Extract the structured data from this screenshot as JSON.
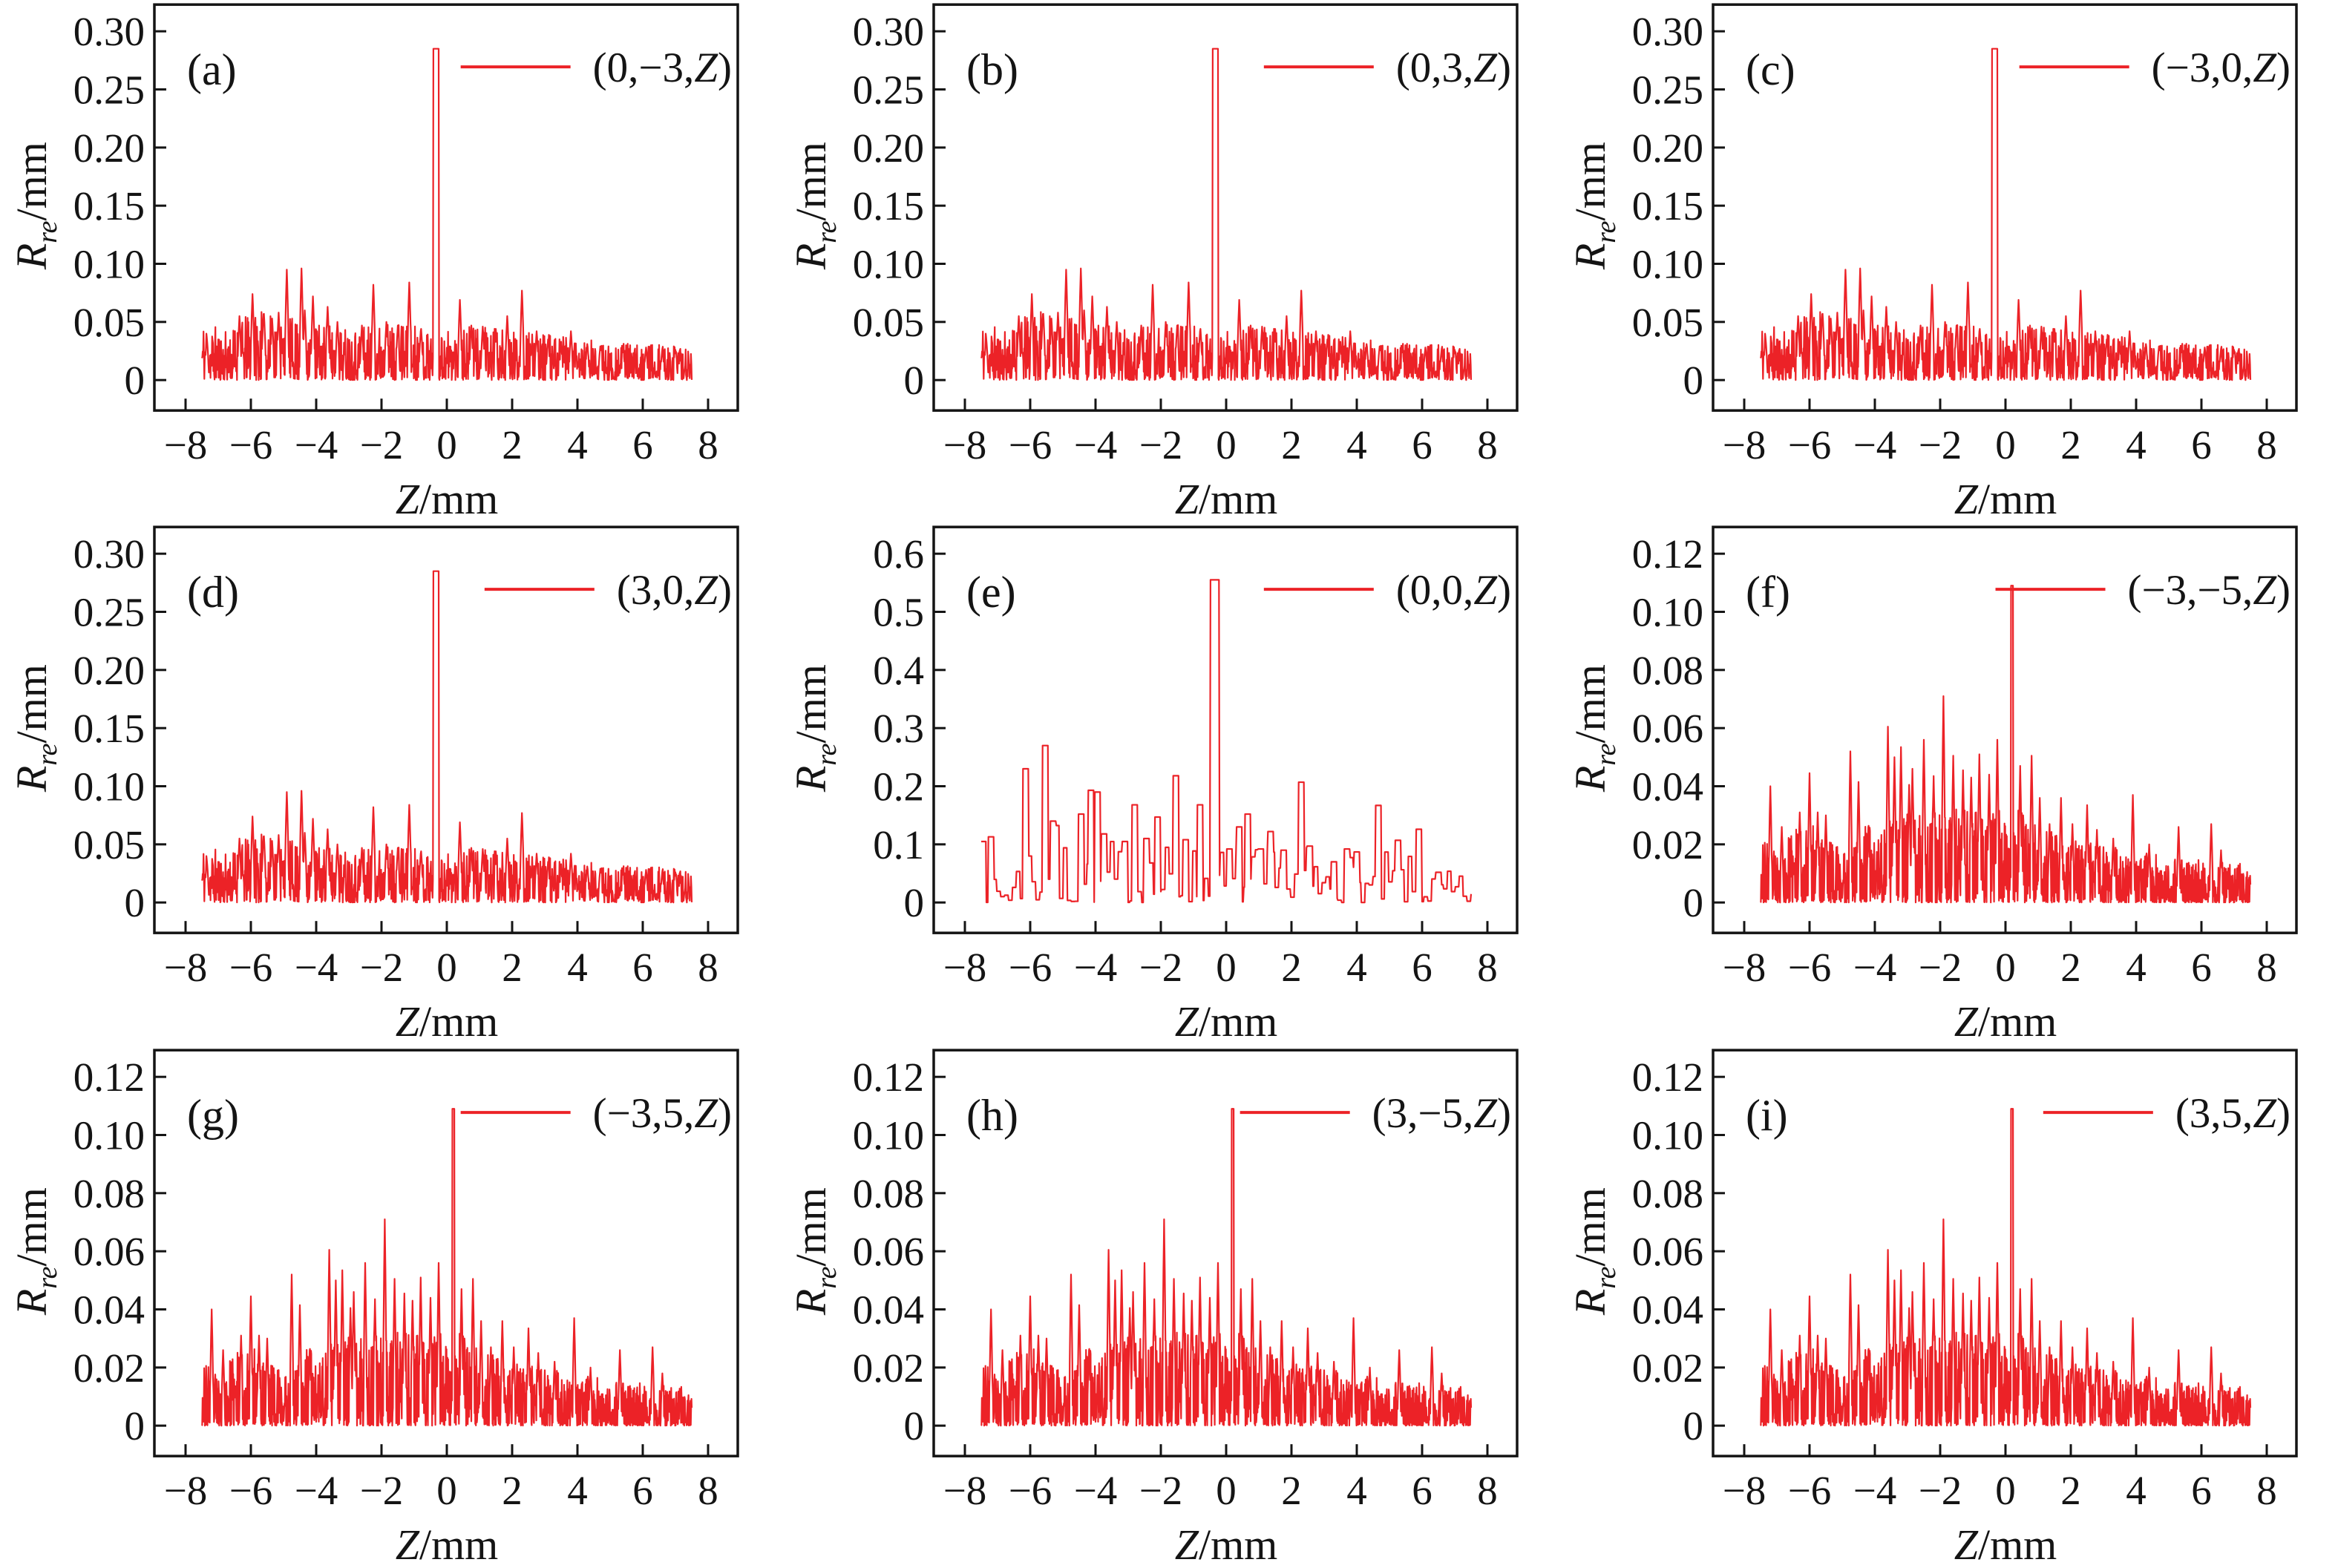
{
  "figure": {
    "line_color": "#EC2227",
    "frame_color": "#141414",
    "text_color": "#141414",
    "x_axis_title": "Z/mm",
    "x_axis_title_var": "Z",
    "x_axis_title_rest": "/mm",
    "y_axis_title": "Rre/mm",
    "y_axis_title_var": "R",
    "y_axis_title_sub": "re",
    "y_axis_title_rest": "/mm",
    "x_tick_labels": [
      "−8",
      "−6",
      "−4",
      "−2",
      "0",
      "2",
      "4",
      "6",
      "8"
    ],
    "x_tick_values": [
      -8,
      -6,
      -4,
      -2,
      0,
      2,
      4,
      6,
      8
    ],
    "x_range": [
      -8,
      8
    ]
  },
  "series_defs": {
    "row1": {
      "seed": 11,
      "step": 0.0125,
      "hold": 1,
      "power": 1.6,
      "spike_w": 0.06,
      "flat": false,
      "envelope": [
        [
          -7.5,
          0.055
        ],
        [
          -6.8,
          0.042
        ],
        [
          -5.9,
          0.06
        ],
        [
          -5.0,
          0.055
        ],
        [
          -4.0,
          0.05
        ],
        [
          -3.0,
          0.046
        ],
        [
          -2.0,
          0.05
        ],
        [
          -1.0,
          0.05
        ],
        [
          0.0,
          0.046
        ],
        [
          1.0,
          0.046
        ],
        [
          2.0,
          0.042
        ],
        [
          3.0,
          0.04
        ],
        [
          4.0,
          0.036
        ],
        [
          5.0,
          0.032
        ],
        [
          6.0,
          0.032
        ],
        [
          7.5,
          0.028
        ]
      ],
      "main_peak": {
        "x": -0.33,
        "h": 0.285,
        "w": 0.18
      },
      "spikes": [
        [
          -7.6,
          0.058
        ],
        [
          -7.35,
          0.037
        ],
        [
          -6.35,
          0.055
        ],
        [
          -5.95,
          0.074
        ],
        [
          -5.6,
          0.057
        ],
        [
          -5.35,
          0.053
        ],
        [
          -5.15,
          0.058
        ],
        [
          -4.9,
          0.095
        ],
        [
          -4.45,
          0.096
        ],
        [
          -4.35,
          0.06
        ],
        [
          -4.1,
          0.072
        ],
        [
          -3.65,
          0.063
        ],
        [
          -3.35,
          0.05
        ],
        [
          -2.6,
          0.047
        ],
        [
          -2.25,
          0.082
        ],
        [
          -1.85,
          0.05
        ],
        [
          -1.5,
          0.047
        ],
        [
          -1.15,
          0.084
        ],
        [
          -0.8,
          0.042
        ],
        [
          0.4,
          0.069
        ],
        [
          0.75,
          0.047
        ],
        [
          1.1,
          0.046
        ],
        [
          1.5,
          0.044
        ],
        [
          1.85,
          0.055
        ],
        [
          2.3,
          0.077
        ],
        [
          2.75,
          0.042
        ],
        [
          3.1,
          0.035
        ],
        [
          3.5,
          0.03
        ],
        [
          3.8,
          0.042
        ],
        [
          4.3,
          0.031
        ],
        [
          4.7,
          0.029
        ],
        [
          5.4,
          0.027
        ],
        [
          6.1,
          0.028
        ],
        [
          6.6,
          0.027
        ],
        [
          7.0,
          0.026
        ]
      ]
    },
    "center": {
      "seed": 7,
      "step": 0.02,
      "hold": 6,
      "power": 2.1,
      "spike_w": 0.18,
      "flat": true,
      "envelope": [
        [
          -7.5,
          0.11
        ],
        [
          -6.8,
          0.06
        ],
        [
          -6.1,
          0.14
        ],
        [
          -5.4,
          0.15
        ],
        [
          -4.6,
          0.1
        ],
        [
          -4.0,
          0.13
        ],
        [
          -3.2,
          0.1
        ],
        [
          -2.4,
          0.12
        ],
        [
          -1.6,
          0.1
        ],
        [
          -0.8,
          0.11
        ],
        [
          0.0,
          0.1
        ],
        [
          0.8,
          0.1
        ],
        [
          1.6,
          0.09
        ],
        [
          2.4,
          0.1
        ],
        [
          3.2,
          0.08
        ],
        [
          4.0,
          0.09
        ],
        [
          4.8,
          0.09
        ],
        [
          5.6,
          0.08
        ],
        [
          6.4,
          0.06
        ],
        [
          7.5,
          0.045
        ]
      ],
      "main_peak": {
        "x": -0.35,
        "h": 0.555,
        "w": 0.28
      },
      "spikes": [
        [
          -7.45,
          0.105
        ],
        [
          -7.2,
          0.113
        ],
        [
          -6.15,
          0.23
        ],
        [
          -5.55,
          0.27
        ],
        [
          -5.3,
          0.14
        ],
        [
          -4.45,
          0.152
        ],
        [
          -4.15,
          0.193
        ],
        [
          -3.95,
          0.19
        ],
        [
          -3.75,
          0.118
        ],
        [
          -3.1,
          0.105
        ],
        [
          -2.8,
          0.168
        ],
        [
          -2.45,
          0.11
        ],
        [
          -2.1,
          0.147
        ],
        [
          -1.55,
          0.218
        ],
        [
          -1.25,
          0.108
        ],
        [
          -0.8,
          0.168
        ],
        [
          0.1,
          0.092
        ],
        [
          0.4,
          0.13
        ],
        [
          0.65,
          0.152
        ],
        [
          1.05,
          0.092
        ],
        [
          1.35,
          0.122
        ],
        [
          1.75,
          0.09
        ],
        [
          2.3,
          0.207
        ],
        [
          2.55,
          0.097
        ],
        [
          3.3,
          0.07
        ],
        [
          3.7,
          0.092
        ],
        [
          4.0,
          0.087
        ],
        [
          4.65,
          0.167
        ],
        [
          5.25,
          0.107
        ],
        [
          5.9,
          0.126
        ],
        [
          6.5,
          0.052
        ]
      ]
    },
    "row3": {
      "seed": 23,
      "step": 0.01,
      "hold": 1,
      "power": 1.8,
      "spike_w": 0.05,
      "flat": false,
      "envelope": [
        [
          -7.5,
          0.022
        ],
        [
          -6.9,
          0.018
        ],
        [
          -6.2,
          0.03
        ],
        [
          -5.6,
          0.024
        ],
        [
          -5.0,
          0.02
        ],
        [
          -4.4,
          0.026
        ],
        [
          -3.8,
          0.028
        ],
        [
          -3.2,
          0.03
        ],
        [
          -2.6,
          0.032
        ],
        [
          -2.0,
          0.034
        ],
        [
          -1.4,
          0.032
        ],
        [
          -0.8,
          0.032
        ],
        [
          -0.2,
          0.032
        ],
        [
          0.4,
          0.032
        ],
        [
          1.0,
          0.028
        ],
        [
          1.6,
          0.024
        ],
        [
          2.2,
          0.022
        ],
        [
          2.8,
          0.02
        ],
        [
          3.4,
          0.019
        ],
        [
          4.0,
          0.018
        ],
        [
          4.8,
          0.016
        ],
        [
          5.6,
          0.015
        ],
        [
          6.4,
          0.016
        ],
        [
          7.5,
          0.013
        ]
      ],
      "main_peak": {
        "x": 0.2,
        "h": 0.109,
        "w": 0.07
      },
      "spikes": [
        [
          -7.2,
          0.04
        ],
        [
          -6.85,
          0.026
        ],
        [
          -6.3,
          0.031
        ],
        [
          -6.0,
          0.0445
        ],
        [
          -5.75,
          0.031
        ],
        [
          -5.5,
          0.03
        ],
        [
          -4.75,
          0.052
        ],
        [
          -4.5,
          0.0415
        ],
        [
          -4.2,
          0.026
        ],
        [
          -3.6,
          0.0605
        ],
        [
          -3.4,
          0.05
        ],
        [
          -3.2,
          0.0535
        ],
        [
          -2.95,
          0.0405
        ],
        [
          -2.85,
          0.046
        ],
        [
          -2.5,
          0.056
        ],
        [
          -2.2,
          0.0435
        ],
        [
          -1.9,
          0.071
        ],
        [
          -1.6,
          0.0505
        ],
        [
          -1.3,
          0.0455
        ],
        [
          -1.05,
          0.043
        ],
        [
          -0.8,
          0.051
        ],
        [
          -0.5,
          0.044
        ],
        [
          -0.25,
          0.056
        ],
        [
          0.45,
          0.047
        ],
        [
          0.8,
          0.0505
        ],
        [
          1.05,
          0.036
        ],
        [
          1.35,
          0.027
        ],
        [
          1.7,
          0.036
        ],
        [
          2.05,
          0.027
        ],
        [
          2.5,
          0.0335
        ],
        [
          2.8,
          0.025
        ],
        [
          3.3,
          0.022
        ],
        [
          3.9,
          0.037
        ],
        [
          4.4,
          0.02
        ],
        [
          5.3,
          0.026
        ],
        [
          6.3,
          0.027
        ],
        [
          6.6,
          0.018
        ]
      ]
    }
  },
  "chart_data": [
    {
      "type": "line",
      "panel_letter": "(a)",
      "legend": "(0,−3,Z)",
      "series": "row1",
      "x_range": [
        -8,
        8
      ],
      "data_x_range": [
        -7.5,
        7.5
      ],
      "xlabel": "Z/mm",
      "ylabel": "Rre/mm",
      "y_top": 0.3,
      "y_tick_values": [
        0,
        0.05,
        0.1,
        0.15,
        0.2,
        0.25,
        0.3
      ],
      "y_tick_labels": [
        "0",
        "0.05",
        "0.10",
        "0.15",
        "0.20",
        "0.25",
        "0.30"
      ],
      "main_peak": {
        "x": -0.33,
        "y": 0.285
      },
      "grid": false,
      "legend_position": "top-right"
    },
    {
      "type": "line",
      "panel_letter": "(b)",
      "legend": "(0,3,Z)",
      "series": "row1",
      "x_range": [
        -8,
        8
      ],
      "data_x_range": [
        -7.5,
        7.5
      ],
      "xlabel": "Z/mm",
      "ylabel": "Rre/mm",
      "y_top": 0.3,
      "y_tick_values": [
        0,
        0.05,
        0.1,
        0.15,
        0.2,
        0.25,
        0.3
      ],
      "y_tick_labels": [
        "0",
        "0.05",
        "0.10",
        "0.15",
        "0.20",
        "0.25",
        "0.30"
      ],
      "main_peak": {
        "x": -0.33,
        "y": 0.285
      },
      "grid": false,
      "legend_position": "top-right"
    },
    {
      "type": "line",
      "panel_letter": "(c)",
      "legend": "(−3,0,Z)",
      "series": "row1",
      "x_range": [
        -8,
        8
      ],
      "data_x_range": [
        -7.5,
        7.5
      ],
      "xlabel": "Z/mm",
      "ylabel": "Rre/mm",
      "y_top": 0.3,
      "y_tick_values": [
        0,
        0.05,
        0.1,
        0.15,
        0.2,
        0.25,
        0.3
      ],
      "y_tick_labels": [
        "0",
        "0.05",
        "0.10",
        "0.15",
        "0.20",
        "0.25",
        "0.30"
      ],
      "main_peak": {
        "x": -0.33,
        "y": 0.285
      },
      "grid": false,
      "legend_position": "top-right"
    },
    {
      "type": "line",
      "panel_letter": "(d)",
      "legend": "(3,0,Z)",
      "series": "row1",
      "x_range": [
        -8,
        8
      ],
      "data_x_range": [
        -7.5,
        7.5
      ],
      "xlabel": "Z/mm",
      "ylabel": "Rre/mm",
      "y_top": 0.3,
      "y_tick_values": [
        0,
        0.05,
        0.1,
        0.15,
        0.2,
        0.25,
        0.3
      ],
      "y_tick_labels": [
        "0",
        "0.05",
        "0.10",
        "0.15",
        "0.20",
        "0.25",
        "0.30"
      ],
      "main_peak": {
        "x": -0.33,
        "y": 0.285
      },
      "grid": false,
      "legend_position": "top-right"
    },
    {
      "type": "line",
      "panel_letter": "(e)",
      "legend": "(0,0,Z)",
      "series": "center",
      "x_range": [
        -8,
        8
      ],
      "data_x_range": [
        -7.5,
        7.5
      ],
      "xlabel": "Z/mm",
      "ylabel": "Rre/mm",
      "y_top": 0.6,
      "y_tick_values": [
        0,
        0.1,
        0.2,
        0.3,
        0.4,
        0.5,
        0.6
      ],
      "y_tick_labels": [
        "0",
        "0.1",
        "0.2",
        "0.3",
        "0.4",
        "0.5",
        "0.6"
      ],
      "main_peak": {
        "x": -0.35,
        "y": 0.555
      },
      "grid": false,
      "legend_position": "top-right"
    },
    {
      "type": "line",
      "panel_letter": "(f)",
      "legend": "(−3,−5,Z)",
      "series": "row3",
      "x_range": [
        -8,
        8
      ],
      "data_x_range": [
        -7.5,
        7.5
      ],
      "xlabel": "Z/mm",
      "ylabel": "Rre/mm",
      "y_top": 0.12,
      "y_tick_values": [
        0,
        0.02,
        0.04,
        0.06,
        0.08,
        0.1,
        0.12
      ],
      "y_tick_labels": [
        "0",
        "0.02",
        "0.04",
        "0.06",
        "0.08",
        "0.10",
        "0.12"
      ],
      "main_peak": {
        "x": 0.2,
        "y": 0.109
      },
      "grid": false,
      "legend_position": "top-right"
    },
    {
      "type": "line",
      "panel_letter": "(g)",
      "legend": "(−3,5,Z)",
      "series": "row3",
      "x_range": [
        -8,
        8
      ],
      "data_x_range": [
        -7.5,
        7.5
      ],
      "xlabel": "Z/mm",
      "ylabel": "Rre/mm",
      "y_top": 0.12,
      "y_tick_values": [
        0,
        0.02,
        0.04,
        0.06,
        0.08,
        0.1,
        0.12
      ],
      "y_tick_labels": [
        "0",
        "0.02",
        "0.04",
        "0.06",
        "0.08",
        "0.10",
        "0.12"
      ],
      "main_peak": {
        "x": 0.2,
        "y": 0.109
      },
      "grid": false,
      "legend_position": "top-right"
    },
    {
      "type": "line",
      "panel_letter": "(h)",
      "legend": "(3,−5,Z)",
      "series": "row3",
      "x_range": [
        -8,
        8
      ],
      "data_x_range": [
        -7.5,
        7.5
      ],
      "xlabel": "Z/mm",
      "ylabel": "Rre/mm",
      "y_top": 0.12,
      "y_tick_values": [
        0,
        0.02,
        0.04,
        0.06,
        0.08,
        0.1,
        0.12
      ],
      "y_tick_labels": [
        "0",
        "0.02",
        "0.04",
        "0.06",
        "0.08",
        "0.10",
        "0.12"
      ],
      "main_peak": {
        "x": 0.2,
        "y": 0.109
      },
      "grid": false,
      "legend_position": "top-right"
    },
    {
      "type": "line",
      "panel_letter": "(i)",
      "legend": "(3,5,Z)",
      "series": "row3",
      "x_range": [
        -8,
        8
      ],
      "data_x_range": [
        -7.5,
        7.5
      ],
      "xlabel": "Z/mm",
      "ylabel": "Rre/mm",
      "y_top": 0.12,
      "y_tick_values": [
        0,
        0.02,
        0.04,
        0.06,
        0.08,
        0.1,
        0.12
      ],
      "y_tick_labels": [
        "0",
        "0.02",
        "0.04",
        "0.06",
        "0.08",
        "0.10",
        "0.12"
      ],
      "main_peak": {
        "x": 0.2,
        "y": 0.109
      },
      "grid": false,
      "legend_position": "top-right"
    }
  ]
}
